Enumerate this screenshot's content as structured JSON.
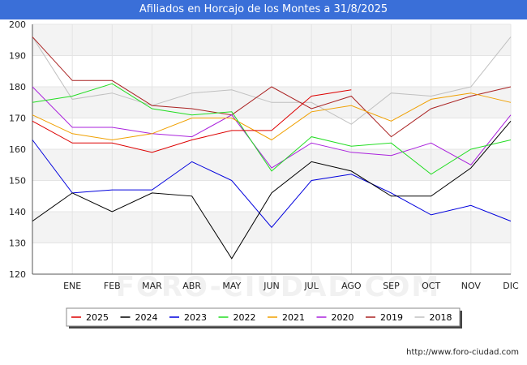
{
  "chart_data": {
    "type": "line",
    "title": "Afiliados en Horcajo de los Montes a 31/8/2025",
    "categories": [
      "",
      "ENE",
      "FEB",
      "MAR",
      "ABR",
      "MAY",
      "JUN",
      "JUL",
      "AGO",
      "SEP",
      "OCT",
      "NOV",
      "DIC"
    ],
    "ylim": [
      120,
      200
    ],
    "yticks": [
      120,
      130,
      140,
      150,
      160,
      170,
      180,
      190,
      200
    ],
    "grid": true,
    "legend_position": "bottom",
    "series": [
      {
        "name": "2025",
        "color": "#dd0000",
        "values": [
          169,
          162,
          162,
          159,
          163,
          166,
          166,
          177,
          179,
          null,
          null,
          null,
          null
        ]
      },
      {
        "name": "2024",
        "color": "#000000",
        "values": [
          137,
          146,
          140,
          146,
          145,
          125,
          146,
          156,
          153,
          145,
          145,
          154,
          169
        ]
      },
      {
        "name": "2023",
        "color": "#0000dd",
        "values": [
          163,
          146,
          147,
          147,
          156,
          150,
          135,
          150,
          152,
          146,
          139,
          142,
          137
        ]
      },
      {
        "name": "2022",
        "color": "#22dd22",
        "values": [
          175,
          177,
          181,
          173,
          171,
          172,
          153,
          164,
          161,
          162,
          152,
          160,
          163
        ]
      },
      {
        "name": "2021",
        "color": "#f0a000",
        "values": [
          171,
          165,
          163,
          165,
          170,
          170,
          163,
          172,
          174,
          169,
          176,
          178,
          175
        ]
      },
      {
        "name": "2020",
        "color": "#aa22dd",
        "values": [
          180,
          167,
          167,
          165,
          164,
          171,
          154,
          162,
          159,
          158,
          162,
          155,
          171
        ]
      },
      {
        "name": "2019",
        "color": "#aa2222",
        "values": [
          196,
          182,
          182,
          174,
          173,
          171,
          180,
          173,
          177,
          164,
          173,
          177,
          180
        ]
      },
      {
        "name": "2018",
        "color": "#c0c0c0",
        "values": [
          196,
          176,
          178,
          174,
          178,
          179,
          175,
          175,
          168,
          178,
          177,
          180,
          196
        ]
      }
    ]
  },
  "source_text": "http://www.foro-ciudad.com",
  "watermark_text": "FORO-CIUDAD.COM"
}
